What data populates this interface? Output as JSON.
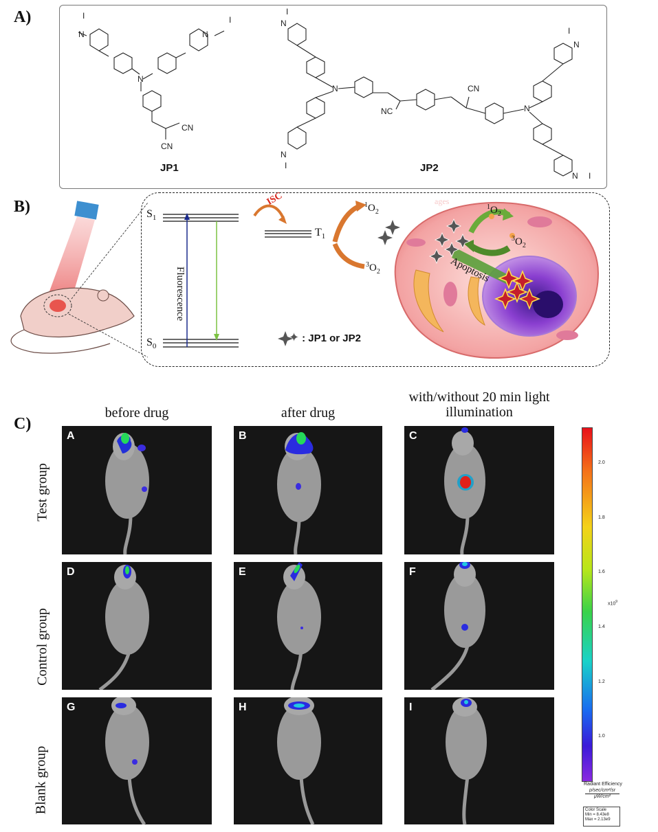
{
  "panels": {
    "A": {
      "letter": "A)",
      "molecules": [
        {
          "name": "JP1"
        },
        {
          "name": "JP2"
        }
      ]
    },
    "B": {
      "letter": "B)",
      "s1": "S",
      "s1_sub": "1",
      "s0": "S",
      "s0_sub": "0",
      "t1": "T",
      "t1_sub": "1",
      "isc": "ISC",
      "fluorescence": "Fluorescence",
      "singlet_o2_pre": "1",
      "singlet_o2": "O",
      "singlet_o2_sub": "2",
      "triplet_o2_pre": "3",
      "triplet_o2": "O",
      "triplet_o2_sub": "2",
      "cell_singlet_pre": "1",
      "cell_singlet": "O",
      "cell_singlet_sub": "2",
      "cell_triplet_pre": "3",
      "cell_triplet": "O",
      "cell_triplet_sub": "2",
      "apoptosis": "Apoptosis",
      "legend": ": JP1 or JP2",
      "faint_word": "ages"
    },
    "C": {
      "letter": "C)",
      "columns": [
        "before drug",
        "after drug",
        "with/without 20 min light illumination"
      ],
      "rows": [
        "Test group",
        "Control group",
        "Blank group"
      ],
      "images": [
        "A",
        "B",
        "C",
        "D",
        "E",
        "F",
        "G",
        "H",
        "I"
      ]
    }
  },
  "colorbar": {
    "ticks": [
      "2.0",
      "1.8",
      "1.6",
      "1.4",
      "1.2",
      "1.0"
    ],
    "multiplier": "x10",
    "multiplier_exp": "9",
    "title": "Radiant Efficiency",
    "units_num": "p/sec/cm²/sr",
    "units_den": "μW/cm²",
    "scale_title": "Color Scale",
    "scale_min": "Min = 8.43e8",
    "scale_max": "Max = 2.13e9"
  },
  "colors": {
    "ground_state_arrow": "#1a2a8c",
    "fluorescence_arrow": "#7cc242",
    "isc_text": "#d9261c",
    "o2_arrow": "#d9772f",
    "cell_membrane": "#f3a3a3",
    "nucleus": "#8a3fd0"
  }
}
